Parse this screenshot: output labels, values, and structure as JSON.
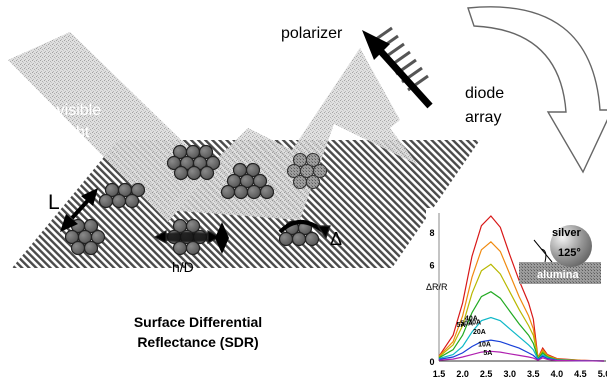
{
  "labels": {
    "polarizer": "polarizer",
    "diode_array_line1": "diode",
    "diode_array_line2": "array",
    "uv_line1": "UV-visible",
    "uv_line2": "light",
    "dim_L": "L",
    "dim_hD": "h/D",
    "dim_delta": "Δ",
    "title_line1": "Surface Differential",
    "title_line2": "Reflectance (SDR)"
  },
  "inset": {
    "ylabel": "ΔR/R",
    "silver": "silver",
    "alumina": "alumina",
    "angle": "125°",
    "series_labels": [
      "5A",
      "50A",
      "40A",
      "30A",
      "20A",
      "10A",
      "5A"
    ]
  },
  "chart_data": {
    "type": "line",
    "xlabel": "",
    "ylabel": "ΔR/R",
    "xlim": [
      1.5,
      5.0
    ],
    "ylim": [
      0,
      9
    ],
    "x_ticks": [
      "1.5",
      "2.0",
      "2.5",
      "3.0",
      "3.5",
      "4.0",
      "4.5",
      "5.0"
    ],
    "y_ticks": [
      "0",
      "6",
      "8"
    ],
    "x": [
      1.5,
      1.8,
      2.0,
      2.2,
      2.4,
      2.6,
      2.8,
      3.0,
      3.2,
      3.4,
      3.5,
      3.6,
      3.7,
      3.8,
      4.0,
      4.5,
      5.0
    ],
    "series": [
      {
        "name": "5A",
        "color": "#d81818",
        "values": [
          0.3,
          1.6,
          3.6,
          6.5,
          8.4,
          9.0,
          8.3,
          6.6,
          5.0,
          3.6,
          2.6,
          0.2,
          0.8,
          0.4,
          0.15,
          0.05,
          0.0
        ]
      },
      {
        "name": "50A",
        "color": "#f08a10",
        "values": [
          0.3,
          1.2,
          2.8,
          5.2,
          6.9,
          7.4,
          6.8,
          5.4,
          4.0,
          2.8,
          2.0,
          0.2,
          0.7,
          0.35,
          0.12,
          0.04,
          0.0
        ]
      },
      {
        "name": "40A",
        "color": "#b8b800",
        "values": [
          0.25,
          1.0,
          2.2,
          4.2,
          5.6,
          6.0,
          5.4,
          4.3,
          3.2,
          2.2,
          1.6,
          0.2,
          0.6,
          0.3,
          0.1,
          0.03,
          0.0
        ]
      },
      {
        "name": "30A",
        "color": "#22aa22",
        "values": [
          0.2,
          0.7,
          1.6,
          3.0,
          4.0,
          4.3,
          3.9,
          3.1,
          2.3,
          1.6,
          1.1,
          0.15,
          0.5,
          0.25,
          0.08,
          0.02,
          0.0
        ]
      },
      {
        "name": "20A",
        "color": "#10b8c8",
        "values": [
          0.15,
          0.4,
          0.9,
          1.8,
          2.5,
          2.7,
          2.5,
          2.0,
          1.5,
          1.0,
          0.7,
          0.1,
          0.4,
          0.2,
          0.06,
          0.02,
          0.0
        ]
      },
      {
        "name": "10A",
        "color": "#1840d8",
        "values": [
          0.1,
          0.25,
          0.5,
          0.9,
          1.2,
          1.3,
          1.2,
          1.0,
          0.8,
          0.5,
          0.35,
          0.08,
          0.3,
          0.15,
          0.05,
          0.01,
          0.0
        ]
      },
      {
        "name": "5A",
        "color": "#b020b0",
        "values": [
          0.05,
          0.12,
          0.25,
          0.4,
          0.55,
          0.6,
          0.55,
          0.45,
          0.35,
          0.25,
          0.18,
          0.05,
          0.2,
          0.1,
          0.03,
          0.01,
          0.0
        ]
      }
    ]
  }
}
